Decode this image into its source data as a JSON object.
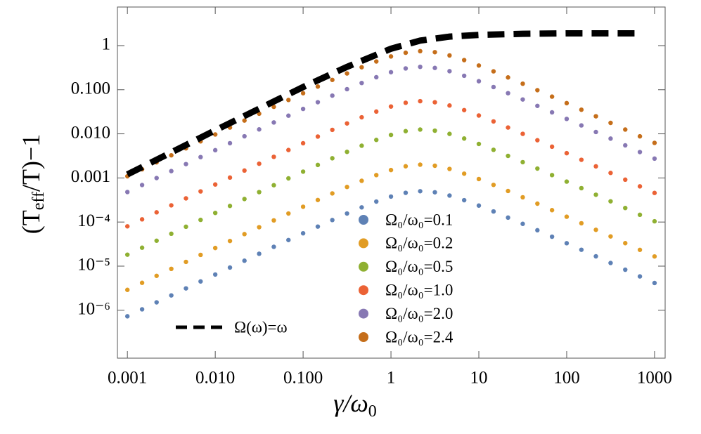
{
  "chart_data": {
    "type": "scatter",
    "xscale": "log",
    "yscale": "log",
    "xlabel": [
      "γ/ω",
      "0"
    ],
    "ylabel": [
      "(T",
      "eff",
      "/T)−1"
    ],
    "xlim": [
      0.00077,
      1320
    ],
    "ylim": [
      8.2e-08,
      7.5
    ],
    "xticks": [
      {
        "value": 0.001,
        "label": "0.001"
      },
      {
        "value": 0.01,
        "label": "0.010"
      },
      {
        "value": 0.1,
        "label": "0.100"
      },
      1,
      10,
      100,
      1000
    ],
    "yticks": [
      1,
      {
        "value": 0.1,
        "label": "0.100"
      },
      {
        "value": 0.01,
        "label": "0.010"
      },
      {
        "value": 0.001,
        "label": "0.001"
      },
      {
        "value": 0.0001,
        "label": "10⁻⁴"
      },
      {
        "value": 1e-05,
        "label": "10⁻⁵"
      },
      {
        "value": 1e-06,
        "label": "10⁻⁶"
      }
    ],
    "x": [
      0.001,
      0.00147,
      0.00215,
      0.00316,
      0.00464,
      0.00681,
      0.01,
      0.0147,
      0.0215,
      0.0316,
      0.0464,
      0.0681,
      0.1,
      0.147,
      0.215,
      0.316,
      0.464,
      0.681,
      1,
      1.47,
      2.15,
      3.16,
      4.64,
      6.81,
      10,
      14.7,
      21.5,
      31.6,
      46.4,
      68.1,
      100,
      147,
      215,
      316,
      464,
      681,
      1000
    ],
    "series": [
      {
        "name": "Ω₀/ω₀=0.1",
        "color": "#5e81b5",
        "values": [
          7.3e-07,
          1.05e-06,
          1.51e-06,
          2.17e-06,
          3.13e-06,
          4.5e-06,
          6.46e-06,
          9.29e-06,
          1.33e-05,
          1.91e-05,
          2.74e-05,
          3.91e-05,
          5.56e-05,
          7.89e-05,
          0.000111,
          0.000156,
          0.000215,
          0.000291,
          0.000378,
          0.00046,
          0.0005,
          0.000473,
          0.000399,
          0.000313,
          0.000236,
          0.000174,
          0.000126,
          9.1e-05,
          6.52e-05,
          4.65e-05,
          3.31e-05,
          2.35e-05,
          1.67e-05,
          1.18e-05,
          8.3e-06,
          5.85e-06,
          4.15e-06
        ]
      },
      {
        "name": "Ω₀/ω₀=0.2",
        "color": "#e19c24",
        "values": [
          2.9e-06,
          4.19e-06,
          6.03e-06,
          8.69e-06,
          1.25e-05,
          1.8e-05,
          2.58e-05,
          3.72e-05,
          5.33e-05,
          7.64e-05,
          0.000109,
          0.000156,
          0.000222,
          0.000316,
          0.000446,
          0.000624,
          0.000861,
          0.00116,
          0.00151,
          0.00184,
          0.002,
          0.00189,
          0.0016,
          0.00125,
          0.000944,
          0.000695,
          0.000506,
          0.000364,
          0.000261,
          0.000186,
          0.000132,
          9.38e-05,
          6.66e-05,
          4.72e-05,
          3.32e-05,
          2.34e-05,
          1.66e-05
        ]
      },
      {
        "name": "Ω₀/ω₀=0.5",
        "color": "#8fb032",
        "values": [
          1.82e-05,
          2.62e-05,
          3.77e-05,
          5.43e-05,
          7.82e-05,
          0.000112,
          0.000161,
          0.000232,
          0.000333,
          0.000477,
          0.000684,
          0.000977,
          0.00139,
          0.00197,
          0.00279,
          0.0039,
          0.00538,
          0.00728,
          0.00946,
          0.0115,
          0.0125,
          0.0118,
          0.00998,
          0.00783,
          0.0059,
          0.00434,
          0.00316,
          0.00228,
          0.00163,
          0.00116,
          0.000826,
          0.000586,
          0.000416,
          0.000295,
          0.000208,
          0.000146,
          0.000104
        ]
      },
      {
        "name": "Ω₀/ω₀=1.0",
        "color": "#eb6235",
        "values": [
          7.99e-05,
          0.000115,
          0.000166,
          0.000239,
          0.000344,
          0.000495,
          0.00071,
          0.00102,
          0.00147,
          0.0021,
          0.00301,
          0.0043,
          0.00612,
          0.00868,
          0.0123,
          0.0172,
          0.0237,
          0.032,
          0.0416,
          0.0506,
          0.055,
          0.052,
          0.0439,
          0.0345,
          0.026,
          0.0191,
          0.0139,
          0.01,
          0.00717,
          0.00511,
          0.00364,
          0.00258,
          0.00183,
          0.0013,
          0.000913,
          0.000644,
          0.000457
        ]
      },
      {
        "name": "Ω₀/ω₀=2.0",
        "color": "#8778b3",
        "values": [
          0.000479,
          0.000691,
          0.000994,
          0.00143,
          0.00206,
          0.00297,
          0.00426,
          0.00613,
          0.0088,
          0.0126,
          0.0181,
          0.0258,
          0.0367,
          0.0521,
          0.0735,
          0.103,
          0.142,
          0.192,
          0.25,
          0.304,
          0.33,
          0.312,
          0.263,
          0.207,
          0.156,
          0.115,
          0.0835,
          0.0601,
          0.043,
          0.0307,
          0.0218,
          0.0155,
          0.011,
          0.00779,
          0.00548,
          0.00386,
          0.00274
        ]
      },
      {
        "name": "Ω₀/ω₀=2.4",
        "color": "#c56e1a",
        "values": [
          0.00109,
          0.00157,
          0.00226,
          0.00326,
          0.00469,
          0.00675,
          0.00968,
          0.0139,
          0.02,
          0.0286,
          0.041,
          0.0586,
          0.0834,
          0.118,
          0.167,
          0.234,
          0.323,
          0.437,
          0.568,
          0.69,
          0.75,
          0.71,
          0.599,
          0.47,
          0.354,
          0.261,
          0.19,
          0.137,
          0.0977,
          0.0697,
          0.0496,
          0.0352,
          0.025,
          0.0177,
          0.0125,
          0.00878,
          0.00623
        ]
      },
      {
        "name": "Ω(ω)=ω",
        "color": "#000000",
        "line_style": "dashed",
        "x": [
          0.001,
          0.01,
          0.1,
          0.316,
          1,
          2.15,
          4.64,
          10,
          31.6,
          100,
          316,
          681
        ],
        "values": [
          0.0012,
          0.012,
          0.115,
          0.33,
          0.85,
          1.3,
          1.6,
          1.75,
          1.85,
          1.9,
          1.9,
          1.9
        ]
      }
    ]
  }
}
